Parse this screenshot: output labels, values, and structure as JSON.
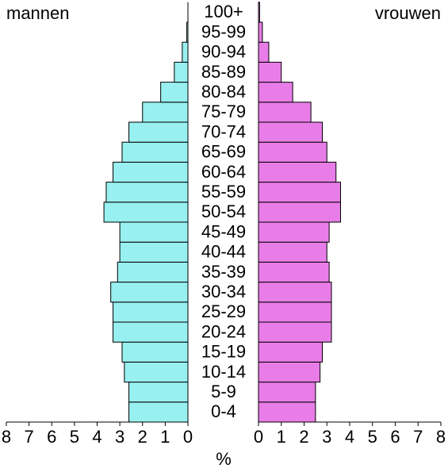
{
  "chart_data": {
    "type": "pyramid",
    "categories": [
      "0-4",
      "5-9",
      "10-14",
      "15-19",
      "20-24",
      "25-29",
      "30-34",
      "35-39",
      "40-44",
      "45-49",
      "50-54",
      "55-59",
      "60-64",
      "65-69",
      "70-74",
      "75-79",
      "80-84",
      "85-89",
      "90-94",
      "95-99",
      "100+"
    ],
    "series": [
      {
        "name": "mannen",
        "color": "#98f0f0",
        "values": [
          2.6,
          2.6,
          2.8,
          2.9,
          3.3,
          3.3,
          3.4,
          3.1,
          3.0,
          3.0,
          3.7,
          3.6,
          3.3,
          2.9,
          2.6,
          2.0,
          1.2,
          0.6,
          0.25,
          0.05,
          0.0
        ]
      },
      {
        "name": "vrouwen",
        "color": "#e87de8",
        "values": [
          2.5,
          2.5,
          2.7,
          2.8,
          3.2,
          3.2,
          3.2,
          3.1,
          3.0,
          3.1,
          3.6,
          3.6,
          3.4,
          3.0,
          2.8,
          2.3,
          1.5,
          1.0,
          0.45,
          0.17,
          0.05
        ]
      }
    ],
    "x_label": "%",
    "xlim": [
      0,
      8
    ],
    "xticks": [
      0,
      1,
      2,
      3,
      4,
      5,
      6,
      7,
      8
    ]
  }
}
